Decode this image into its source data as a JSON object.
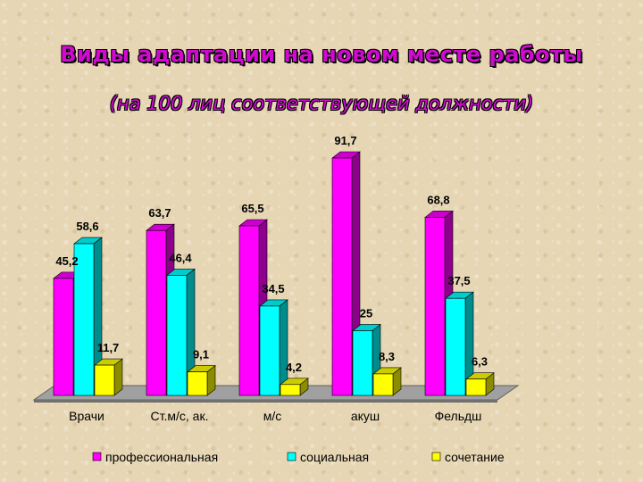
{
  "title": "Виды адаптации  на новом месте работы",
  "subtitle": "(на 100 лиц соответствующей должности)",
  "chart_data": {
    "type": "bar",
    "categories": [
      "Врачи",
      "Ст.м/с, ак.",
      "м/с",
      "акуш",
      "Фельдш"
    ],
    "series": [
      {
        "name": "профессиональная",
        "color": "#ff00ff",
        "values": [
          45.2,
          63.7,
          65.5,
          91.7,
          68.8
        ],
        "labels": [
          "45,2",
          "63,7",
          "65,5",
          "91,7",
          "68,8"
        ]
      },
      {
        "name": "социальная",
        "color": "#00ffff",
        "values": [
          58.6,
          46.4,
          34.5,
          25,
          37.5
        ],
        "labels": [
          "58,6",
          "46,4",
          "34,5",
          "25",
          "37,5"
        ]
      },
      {
        "name": "сочетание",
        "color": "#ffff00",
        "values": [
          11.7,
          9.1,
          4.2,
          8.3,
          6.3
        ],
        "labels": [
          "11,7",
          "9,1",
          "4,2",
          "8,3",
          "6,3"
        ]
      }
    ],
    "ylim": [
      0,
      100
    ],
    "grid": false,
    "legend_position": "bottom",
    "three_d": true
  }
}
